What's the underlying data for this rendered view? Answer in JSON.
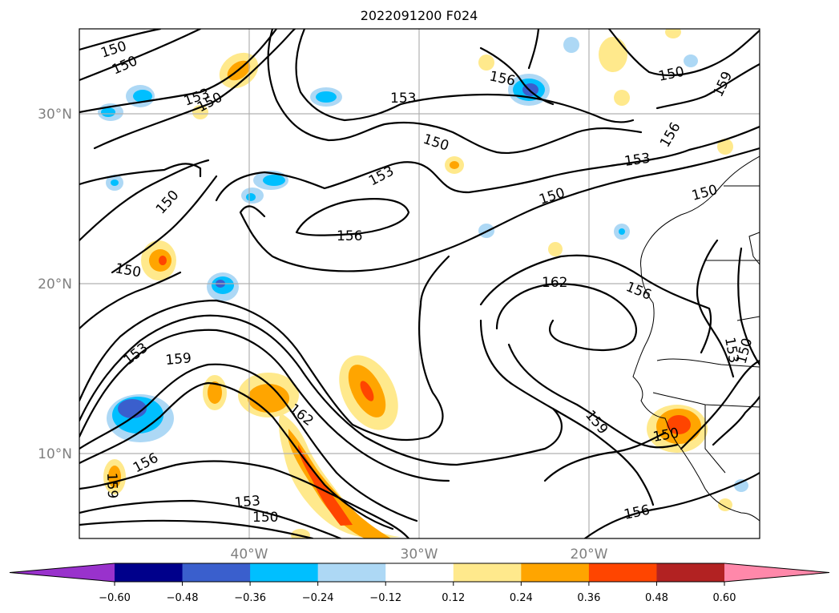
{
  "title": "2022091200 F024",
  "lat_labels": [
    "30°N",
    "20°N",
    "10°N"
  ],
  "lon_labels": [
    "40°W",
    "30°W",
    "20°W"
  ],
  "colorbar": {
    "ticks": [
      "−0.60",
      "−0.48",
      "−0.36",
      "−0.24",
      "−0.12",
      "0.12",
      "0.24",
      "0.36",
      "0.48",
      "0.60"
    ],
    "colors": [
      "#9932cc",
      "#00008b",
      "#3a5fcd",
      "#00bfff",
      "#add8f5",
      "#ffffff",
      "#ffe98c",
      "#ffa500",
      "#ff4500",
      "#b22222",
      "#ff88aa"
    ]
  },
  "contour_labels": [
    {
      "text": "150"
    },
    {
      "text": "150"
    },
    {
      "text": "153"
    },
    {
      "text": "150"
    },
    {
      "text": "153"
    },
    {
      "text": "150"
    },
    {
      "text": "153"
    },
    {
      "text": "156"
    },
    {
      "text": "156"
    },
    {
      "text": "150"
    },
    {
      "text": "159"
    },
    {
      "text": "150"
    },
    {
      "text": "156"
    },
    {
      "text": "153"
    },
    {
      "text": "150"
    },
    {
      "text": "150"
    },
    {
      "text": "150"
    },
    {
      "text": "162"
    },
    {
      "text": "156"
    },
    {
      "text": "153"
    },
    {
      "text": "159"
    },
    {
      "text": "162"
    },
    {
      "text": "159"
    },
    {
      "text": "156"
    },
    {
      "text": "159"
    },
    {
      "text": "153"
    },
    {
      "text": "150"
    },
    {
      "text": "150"
    },
    {
      "text": "156"
    },
    {
      "text": "153"
    },
    {
      "text": "150"
    }
  ]
}
